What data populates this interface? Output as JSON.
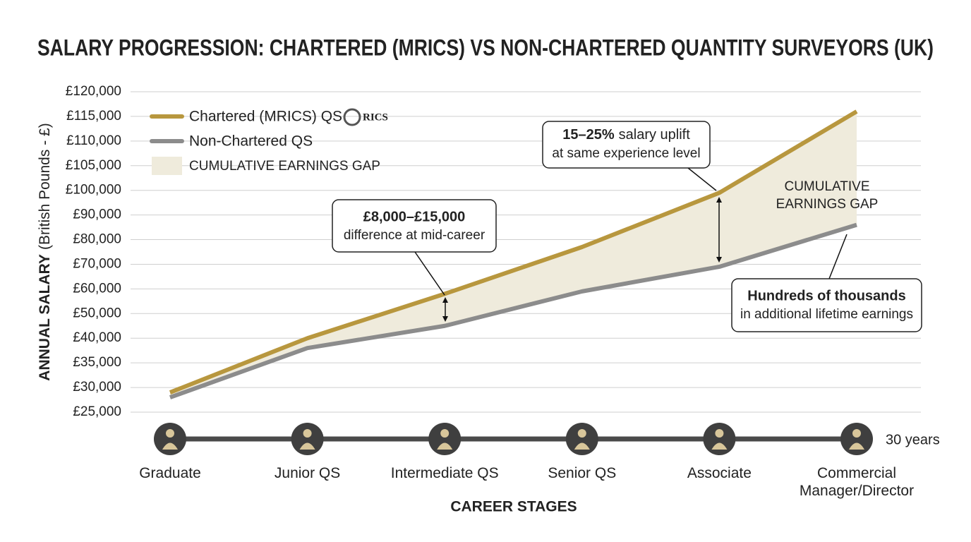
{
  "chart_data": {
    "type": "line",
    "title": "SALARY PROGRESSION: CHARTERED (MRICS) VS NON-CHARTERED QUANTITY SURVEYORS (UK)",
    "y_label": "ANNUAL SALARY",
    "y_label_unit": "(British Pounds - £)",
    "x_label": "CAREER STAGES",
    "categories": [
      "Graduate",
      "Junior QS",
      "Intermediate QS",
      "Senior QS",
      "Associate",
      "Commercial Manager/Director"
    ],
    "series": [
      {
        "name": "Chartered (MRICS) QS",
        "color": "#b8973e",
        "values": [
          29000,
          40000,
          58000,
          77000,
          99000,
          116000
        ]
      },
      {
        "name": "Non-Chartered QS",
        "color": "#8c8c8c",
        "values": [
          28000,
          38000,
          45000,
          59000,
          69000,
          86000
        ]
      }
    ],
    "gap_area": {
      "name": "CUMULATIVE EARNINGS GAP",
      "color": "#efebdc"
    },
    "legend_logo": "RICS",
    "ylim": [
      25000,
      120000
    ],
    "yticks": [
      {
        "value": 120000,
        "label": "£120,000"
      },
      {
        "value": 115000,
        "label": "£115,000"
      },
      {
        "value": 110000,
        "label": "£110,000"
      },
      {
        "value": 105000,
        "label": "£105,000"
      },
      {
        "value": 100000,
        "label": "£100,000"
      },
      {
        "value": 90000,
        "label": "£90,000"
      },
      {
        "value": 80000,
        "label": "£80,000"
      },
      {
        "value": 70000,
        "label": "£70,000"
      },
      {
        "value": 60000,
        "label": "£60,000"
      },
      {
        "value": 50000,
        "label": "£50,000"
      },
      {
        "value": 40000,
        "label": "£40,000"
      },
      {
        "value": 35000,
        "label": "£35,000"
      },
      {
        "value": 30000,
        "label": "£30,000"
      },
      {
        "value": 25000,
        "label": "£25,000"
      }
    ],
    "grid": true,
    "legend": "upper left",
    "timeline_label": "30 years",
    "annotations": [
      {
        "bold": "£8,000–£15,000",
        "text": "difference at mid-career"
      },
      {
        "bold": "15–25%",
        "text": "salary uplift",
        "line2": "at same experience level"
      },
      {
        "bold": "Hundreds of thousands",
        "text": "in additional lifetime earnings"
      }
    ],
    "gap_label": [
      "CUMULATIVE",
      "EARNINGS GAP"
    ]
  }
}
